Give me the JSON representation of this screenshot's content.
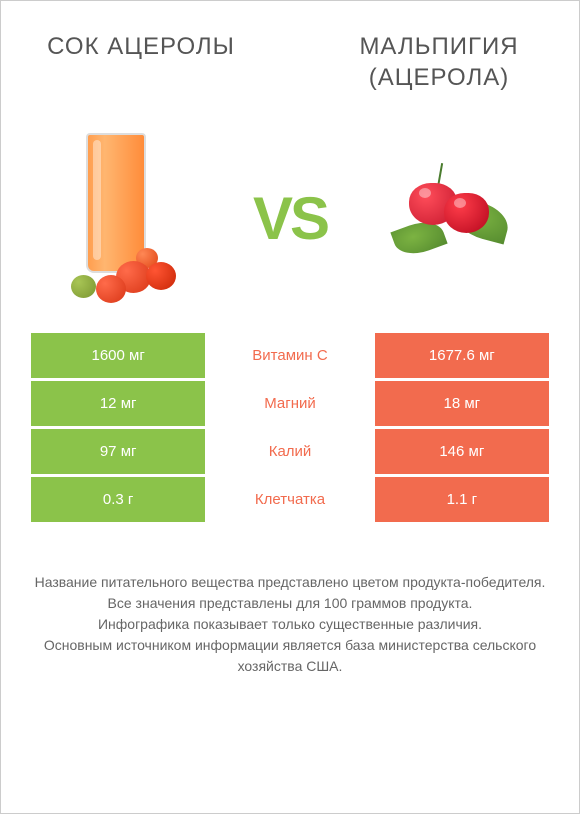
{
  "header": {
    "left_title": "СОК АЦЕРОЛЫ",
    "right_title": "МАЛЬПИГИЯ (АЦЕРОЛА)"
  },
  "vs_label": "VS",
  "colors": {
    "green": "#8bc34a",
    "orange": "#f26b4e",
    "white_bg": "#ffffff",
    "text_gray": "#555555"
  },
  "comparison": [
    {
      "nutrient": "Витамин C",
      "left_value": "1600 мг",
      "right_value": "1677.6 мг",
      "left_bg": "#8bc34a",
      "middle_color": "#f26b4e",
      "right_bg": "#f26b4e"
    },
    {
      "nutrient": "Магний",
      "left_value": "12 мг",
      "right_value": "18 мг",
      "left_bg": "#8bc34a",
      "middle_color": "#f26b4e",
      "right_bg": "#f26b4e"
    },
    {
      "nutrient": "Калий",
      "left_value": "97 мг",
      "right_value": "146 мг",
      "left_bg": "#8bc34a",
      "middle_color": "#f26b4e",
      "right_bg": "#f26b4e"
    },
    {
      "nutrient": "Клетчатка",
      "left_value": "0.3 г",
      "right_value": "1.1 г",
      "left_bg": "#8bc34a",
      "middle_color": "#f26b4e",
      "right_bg": "#f26b4e"
    }
  ],
  "footer": {
    "line1": "Название питательного вещества представлено цветом продукта-победителя.",
    "line2": "Все значения представлены для 100 граммов продукта.",
    "line3": "Инфографика показывает только существенные различия.",
    "line4": "Основным источником информации является база министерства сельского хозяйства США."
  }
}
